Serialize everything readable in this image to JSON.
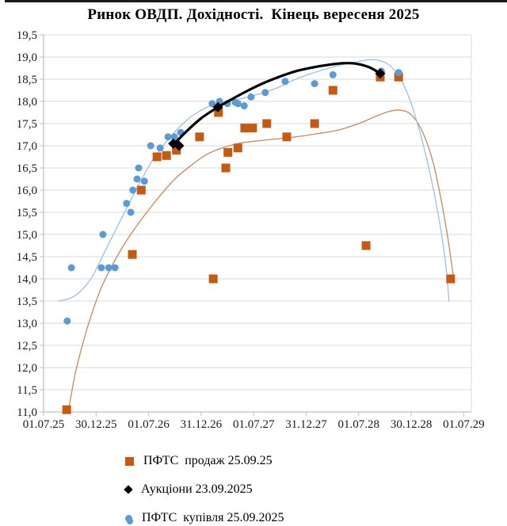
{
  "chart_data": {
    "type": "scatter",
    "title": "Ринок ОВДП. Дохідності.  Кінець вересеня 2025",
    "x_unit": "half-years since 01.07.25",
    "x_tick_values": [
      0,
      1,
      2,
      3,
      4,
      5,
      6,
      7,
      8
    ],
    "x_tick_labels": [
      "01.07.25",
      "30.12.25",
      "01.07.26",
      "31.12.26",
      "01.07.27",
      "31.12.27",
      "01.07.28",
      "30.12.28",
      "01.07.29"
    ],
    "y_tick_values": [
      19.5,
      19.0,
      18.5,
      18.0,
      17.5,
      17.0,
      16.5,
      16.0,
      15.5,
      15.0,
      14.5,
      14.0,
      13.5,
      13.0,
      12.5,
      12.0,
      11.5,
      11.0
    ],
    "y_tick_labels": [
      "19,5",
      "19,0",
      "18,5",
      "18,0",
      "17,5",
      "17,0",
      "16,5",
      "16,0",
      "15,5",
      "15,0",
      "14,5",
      "14,0",
      "13,5",
      "13,0",
      "12,5",
      "12,0",
      "11,5",
      "11,0"
    ],
    "ylim": [
      11.0,
      19.5
    ],
    "xlim": [
      0,
      8.15
    ],
    "grid": "horizontal",
    "legend_position": "bottom-left",
    "colors": {
      "sale": "#C55A11",
      "auction": "#000000",
      "buy": "#5B9BD5",
      "buy_curve": "#9CC0E4",
      "sale_curve": "#C8895A",
      "gridline": "#D9D9D9",
      "axis": "#BFBFBF"
    },
    "legend": [
      {
        "label": "ПФТС  продаж 25.09.25",
        "marker": "square",
        "color": "#C55A11"
      },
      {
        "label": "Аукціони 23.09.2025",
        "marker": "diamond",
        "color": "#000000"
      },
      {
        "label": "ПФТС  купівля 25.09.2025",
        "marker": "circle",
        "color": "#5B9BD5"
      }
    ],
    "series": [
      {
        "name": "ПФТС продаж 25.09.25",
        "marker": "square",
        "color": "#C55A11",
        "points": [
          [
            0.44,
            11.05
          ],
          [
            1.69,
            14.55
          ],
          [
            1.86,
            16.0
          ],
          [
            2.16,
            16.75
          ],
          [
            2.34,
            16.78
          ],
          [
            2.53,
            16.9
          ],
          [
            2.97,
            17.2
          ],
          [
            3.23,
            14.0
          ],
          [
            3.33,
            17.75
          ],
          [
            3.47,
            16.5
          ],
          [
            3.51,
            16.85
          ],
          [
            3.7,
            16.95
          ],
          [
            3.83,
            17.4
          ],
          [
            3.98,
            17.4
          ],
          [
            4.25,
            17.5
          ],
          [
            4.63,
            17.2
          ],
          [
            5.16,
            17.5
          ],
          [
            5.51,
            18.25
          ],
          [
            6.14,
            14.75
          ],
          [
            6.41,
            18.55
          ],
          [
            6.76,
            18.55
          ],
          [
            7.75,
            14.0
          ]
        ]
      },
      {
        "name": "Аукціони 23.09.2025",
        "marker": "diamond",
        "color": "#000000",
        "points": [
          [
            2.47,
            17.05
          ],
          [
            2.58,
            17.0
          ],
          [
            3.32,
            17.87
          ],
          [
            6.41,
            18.63
          ]
        ]
      },
      {
        "name": "ПФТС купівля 25.09.2025",
        "marker": "circle",
        "color": "#5B9BD5",
        "points": [
          [
            0.45,
            13.05
          ],
          [
            0.53,
            14.25
          ],
          [
            1.1,
            14.25
          ],
          [
            1.24,
            14.25
          ],
          [
            1.36,
            14.25
          ],
          [
            1.13,
            15.0
          ],
          [
            1.58,
            15.7
          ],
          [
            1.66,
            15.5
          ],
          [
            1.7,
            16.0
          ],
          [
            1.78,
            16.25
          ],
          [
            1.92,
            16.2
          ],
          [
            1.81,
            16.5
          ],
          [
            2.04,
            17.0
          ],
          [
            2.22,
            16.95
          ],
          [
            2.37,
            17.2
          ],
          [
            2.49,
            17.2
          ],
          [
            2.61,
            17.3
          ],
          [
            3.21,
            17.95
          ],
          [
            3.35,
            18.0
          ],
          [
            3.5,
            17.95
          ],
          [
            3.65,
            17.98
          ],
          [
            3.7,
            17.95
          ],
          [
            3.82,
            17.9
          ],
          [
            3.95,
            18.1
          ],
          [
            4.22,
            18.2
          ],
          [
            4.6,
            18.45
          ],
          [
            5.16,
            18.4
          ],
          [
            5.51,
            18.6
          ],
          [
            6.43,
            18.68
          ],
          [
            6.76,
            18.65
          ]
        ]
      }
    ],
    "trend_curves": [
      {
        "series": "ПФТС продаж 25.09.25",
        "color": "#C8895A",
        "width": 1.3,
        "points": [
          [
            0.47,
            11.0
          ],
          [
            0.6,
            11.85
          ],
          [
            0.75,
            12.55
          ],
          [
            0.9,
            13.15
          ],
          [
            1.1,
            13.8
          ],
          [
            1.35,
            14.4
          ],
          [
            1.6,
            14.9
          ],
          [
            1.9,
            15.4
          ],
          [
            2.2,
            15.85
          ],
          [
            2.5,
            16.25
          ],
          [
            2.8,
            16.55
          ],
          [
            3.1,
            16.8
          ],
          [
            3.4,
            16.95
          ],
          [
            3.7,
            17.05
          ],
          [
            4.0,
            17.1
          ],
          [
            4.4,
            17.15
          ],
          [
            4.8,
            17.2
          ],
          [
            5.2,
            17.27
          ],
          [
            5.6,
            17.35
          ],
          [
            6.0,
            17.5
          ],
          [
            6.3,
            17.65
          ],
          [
            6.6,
            17.78
          ],
          [
            6.8,
            17.8
          ],
          [
            7.0,
            17.7
          ],
          [
            7.2,
            17.35
          ],
          [
            7.4,
            16.7
          ],
          [
            7.55,
            15.9
          ],
          [
            7.7,
            14.9
          ],
          [
            7.82,
            13.9
          ]
        ]
      },
      {
        "series": "ПФТС купівля 25.09.2025",
        "color": "#9CC0E4",
        "width": 1.3,
        "points": [
          [
            0.3,
            13.5
          ],
          [
            0.6,
            13.62
          ],
          [
            0.9,
            14.0
          ],
          [
            1.2,
            14.7
          ],
          [
            1.5,
            15.4
          ],
          [
            1.8,
            16.1
          ],
          [
            2.1,
            16.72
          ],
          [
            2.4,
            17.18
          ],
          [
            2.7,
            17.55
          ],
          [
            3.0,
            17.8
          ],
          [
            3.3,
            17.95
          ],
          [
            3.6,
            18.02
          ],
          [
            3.9,
            18.1
          ],
          [
            4.2,
            18.2
          ],
          [
            4.5,
            18.33
          ],
          [
            4.8,
            18.5
          ],
          [
            5.1,
            18.63
          ],
          [
            5.4,
            18.74
          ],
          [
            5.7,
            18.83
          ],
          [
            6.0,
            18.9
          ],
          [
            6.2,
            18.94
          ],
          [
            6.4,
            18.92
          ],
          [
            6.6,
            18.8
          ],
          [
            6.8,
            18.5
          ],
          [
            7.0,
            17.95
          ],
          [
            7.2,
            17.15
          ],
          [
            7.4,
            16.15
          ],
          [
            7.55,
            15.2
          ],
          [
            7.65,
            14.4
          ],
          [
            7.72,
            13.5
          ]
        ]
      },
      {
        "series": "Аукціони 23.09.2025",
        "color": "#000000",
        "width": 3.2,
        "points": [
          [
            2.47,
            17.02
          ],
          [
            2.7,
            17.3
          ],
          [
            3.0,
            17.62
          ],
          [
            3.32,
            17.87
          ],
          [
            3.6,
            18.06
          ],
          [
            3.9,
            18.25
          ],
          [
            4.2,
            18.42
          ],
          [
            4.5,
            18.56
          ],
          [
            4.8,
            18.68
          ],
          [
            5.1,
            18.76
          ],
          [
            5.4,
            18.82
          ],
          [
            5.7,
            18.86
          ],
          [
            5.95,
            18.85
          ],
          [
            6.2,
            18.77
          ],
          [
            6.41,
            18.63
          ]
        ]
      }
    ]
  }
}
